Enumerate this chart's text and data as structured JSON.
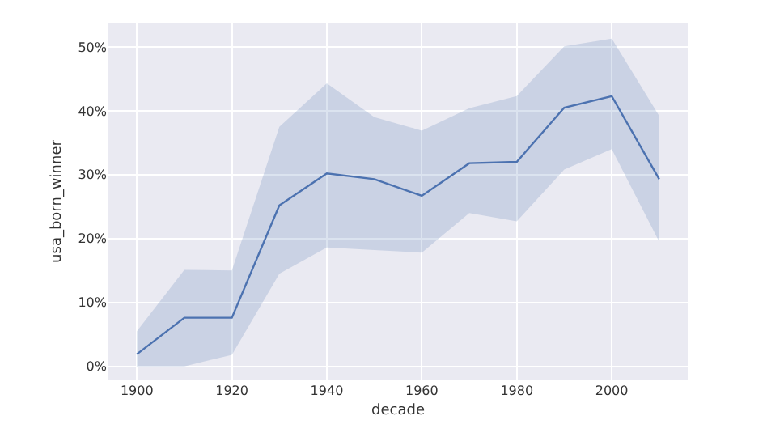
{
  "chart_data": {
    "type": "line",
    "xlabel": "decade",
    "ylabel": "usa_born_winner",
    "x": [
      1900,
      1910,
      1920,
      1930,
      1940,
      1950,
      1960,
      1970,
      1980,
      1990,
      2000,
      2010
    ],
    "series": [
      {
        "color": "#4c72b0",
        "values": [
          1.9,
          7.6,
          7.6,
          25.2,
          30.2,
          29.3,
          26.7,
          31.8,
          32.0,
          40.5,
          42.3,
          29.3
        ],
        "lower": [
          0,
          0,
          1.8,
          14.5,
          18.6,
          18.2,
          17.8,
          24.0,
          22.7,
          30.8,
          34.0,
          19.5
        ],
        "upper": [
          5.5,
          15.1,
          15.0,
          37.5,
          44.3,
          39.0,
          36.9,
          40.4,
          42.3,
          50.1,
          51.3,
          39.2
        ]
      }
    ],
    "xlim": [
      1894,
      2016
    ],
    "xticks": [
      1900,
      1920,
      1940,
      1960,
      1980,
      2000
    ],
    "ylim": [
      -2.2,
      53.8
    ],
    "yticks": [
      {
        "value": 0,
        "label": "0%"
      },
      {
        "value": 10,
        "label": "10%"
      },
      {
        "value": 20,
        "label": "20%"
      },
      {
        "value": 30,
        "label": "30%"
      },
      {
        "value": 40,
        "label": "40%"
      },
      {
        "value": 50,
        "label": "50%"
      }
    ],
    "grid": true,
    "marker": "none",
    "line_style": "solid"
  }
}
